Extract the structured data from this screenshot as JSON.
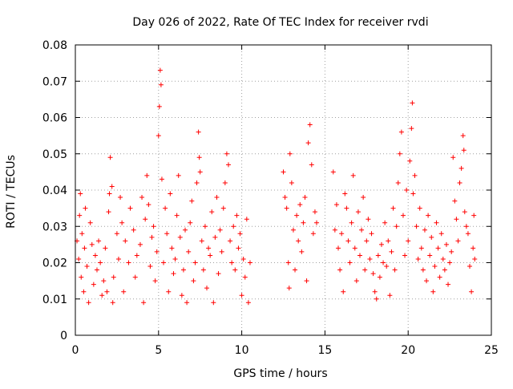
{
  "chart_data": {
    "type": "scatter",
    "title": "Day 026 of 2022, Rate Of TEC Index for receiver rvdi",
    "xlabel": "GPS time / hours",
    "ylabel": "ROTI / TECUs",
    "xlim": [
      0,
      25
    ],
    "ylim": [
      0,
      0.08
    ],
    "x_ticks": [
      "0",
      "5",
      "10",
      "15",
      "20",
      "25"
    ],
    "y_ticks": [
      "0",
      "0.01",
      "0.02",
      "0.03",
      "0.04",
      "0.05",
      "0.06",
      "0.07",
      "0.08"
    ],
    "grid": true,
    "marker": "plus",
    "series": [
      {
        "color": "#ff0000",
        "points": [
          [
            0.1,
            0.026
          ],
          [
            0.2,
            0.021
          ],
          [
            0.25,
            0.033
          ],
          [
            0.3,
            0.039
          ],
          [
            0.35,
            0.016
          ],
          [
            0.4,
            0.028
          ],
          [
            0.5,
            0.012
          ],
          [
            0.55,
            0.024
          ],
          [
            0.6,
            0.035
          ],
          [
            0.7,
            0.019
          ],
          [
            0.8,
            0.009
          ],
          [
            0.9,
            0.031
          ],
          [
            1.0,
            0.025
          ],
          [
            1.1,
            0.014
          ],
          [
            1.2,
            0.022
          ],
          [
            1.3,
            0.018
          ],
          [
            1.4,
            0.026
          ],
          [
            1.5,
            0.02
          ],
          [
            1.6,
            0.011
          ],
          [
            1.7,
            0.015
          ],
          [
            1.8,
            0.024
          ],
          [
            1.9,
            0.012
          ],
          [
            2.0,
            0.034
          ],
          [
            2.05,
            0.039
          ],
          [
            2.1,
            0.049
          ],
          [
            2.2,
            0.041
          ],
          [
            2.25,
            0.009
          ],
          [
            2.3,
            0.016
          ],
          [
            2.5,
            0.028
          ],
          [
            2.6,
            0.021
          ],
          [
            2.7,
            0.038
          ],
          [
            2.8,
            0.031
          ],
          [
            2.9,
            0.012
          ],
          [
            3.0,
            0.026
          ],
          [
            3.2,
            0.02
          ],
          [
            3.3,
            0.035
          ],
          [
            3.5,
            0.029
          ],
          [
            3.6,
            0.016
          ],
          [
            3.7,
            0.022
          ],
          [
            3.9,
            0.025
          ],
          [
            4.0,
            0.038
          ],
          [
            4.1,
            0.009
          ],
          [
            4.2,
            0.032
          ],
          [
            4.3,
            0.044
          ],
          [
            4.4,
            0.036
          ],
          [
            4.5,
            0.019
          ],
          [
            4.6,
            0.027
          ],
          [
            4.7,
            0.03
          ],
          [
            4.8,
            0.015
          ],
          [
            4.9,
            0.023
          ],
          [
            5.0,
            0.055
          ],
          [
            5.05,
            0.063
          ],
          [
            5.1,
            0.073
          ],
          [
            5.15,
            0.069
          ],
          [
            5.2,
            0.043
          ],
          [
            5.3,
            0.02
          ],
          [
            5.4,
            0.035
          ],
          [
            5.5,
            0.028
          ],
          [
            5.6,
            0.012
          ],
          [
            5.7,
            0.039
          ],
          [
            5.8,
            0.024
          ],
          [
            5.9,
            0.017
          ],
          [
            6.0,
            0.021
          ],
          [
            6.1,
            0.033
          ],
          [
            6.2,
            0.044
          ],
          [
            6.3,
            0.027
          ],
          [
            6.4,
            0.011
          ],
          [
            6.5,
            0.018
          ],
          [
            6.6,
            0.029
          ],
          [
            6.7,
            0.009
          ],
          [
            6.8,
            0.023
          ],
          [
            6.9,
            0.031
          ],
          [
            7.0,
            0.037
          ],
          [
            7.1,
            0.015
          ],
          [
            7.2,
            0.02
          ],
          [
            7.3,
            0.042
          ],
          [
            7.4,
            0.056
          ],
          [
            7.45,
            0.049
          ],
          [
            7.5,
            0.045
          ],
          [
            7.6,
            0.026
          ],
          [
            7.7,
            0.018
          ],
          [
            7.8,
            0.03
          ],
          [
            7.9,
            0.013
          ],
          [
            8.0,
            0.024
          ],
          [
            8.1,
            0.022
          ],
          [
            8.2,
            0.034
          ],
          [
            8.3,
            0.009
          ],
          [
            8.4,
            0.027
          ],
          [
            8.5,
            0.038
          ],
          [
            8.6,
            0.017
          ],
          [
            8.7,
            0.029
          ],
          [
            8.8,
            0.023
          ],
          [
            8.9,
            0.035
          ],
          [
            9.0,
            0.042
          ],
          [
            9.1,
            0.05
          ],
          [
            9.2,
            0.047
          ],
          [
            9.3,
            0.026
          ],
          [
            9.4,
            0.02
          ],
          [
            9.5,
            0.03
          ],
          [
            9.6,
            0.018
          ],
          [
            9.7,
            0.033
          ],
          [
            9.8,
            0.024
          ],
          [
            9.9,
            0.028
          ],
          [
            10.0,
            0.011
          ],
          [
            10.1,
            0.021
          ],
          [
            10.2,
            0.016
          ],
          [
            10.3,
            0.032
          ],
          [
            10.4,
            0.009
          ],
          [
            10.5,
            0.02
          ],
          [
            12.5,
            0.045
          ],
          [
            12.6,
            0.038
          ],
          [
            12.7,
            0.035
          ],
          [
            12.8,
            0.02
          ],
          [
            12.85,
            0.013
          ],
          [
            12.9,
            0.05
          ],
          [
            13.0,
            0.042
          ],
          [
            13.1,
            0.029
          ],
          [
            13.2,
            0.018
          ],
          [
            13.3,
            0.033
          ],
          [
            13.4,
            0.026
          ],
          [
            13.5,
            0.036
          ],
          [
            13.6,
            0.023
          ],
          [
            13.7,
            0.031
          ],
          [
            13.8,
            0.038
          ],
          [
            13.9,
            0.015
          ],
          [
            14.0,
            0.053
          ],
          [
            14.1,
            0.058
          ],
          [
            14.2,
            0.047
          ],
          [
            14.3,
            0.028
          ],
          [
            14.4,
            0.034
          ],
          [
            14.5,
            0.031
          ],
          [
            15.5,
            0.045
          ],
          [
            15.6,
            0.029
          ],
          [
            15.7,
            0.036
          ],
          [
            15.8,
            0.024
          ],
          [
            15.9,
            0.018
          ],
          [
            16.0,
            0.028
          ],
          [
            16.1,
            0.012
          ],
          [
            16.2,
            0.039
          ],
          [
            16.3,
            0.035
          ],
          [
            16.4,
            0.026
          ],
          [
            16.5,
            0.02
          ],
          [
            16.6,
            0.031
          ],
          [
            16.7,
            0.044
          ],
          [
            16.8,
            0.024
          ],
          [
            16.9,
            0.015
          ],
          [
            17.0,
            0.034
          ],
          [
            17.1,
            0.022
          ],
          [
            17.2,
            0.029
          ],
          [
            17.3,
            0.038
          ],
          [
            17.4,
            0.018
          ],
          [
            17.5,
            0.026
          ],
          [
            17.6,
            0.032
          ],
          [
            17.7,
            0.021
          ],
          [
            17.8,
            0.028
          ],
          [
            17.9,
            0.017
          ],
          [
            18.0,
            0.012
          ],
          [
            18.1,
            0.01
          ],
          [
            18.2,
            0.022
          ],
          [
            18.3,
            0.016
          ],
          [
            18.4,
            0.025
          ],
          [
            18.5,
            0.02
          ],
          [
            18.6,
            0.031
          ],
          [
            18.7,
            0.019
          ],
          [
            18.8,
            0.026
          ],
          [
            18.9,
            0.011
          ],
          [
            19.0,
            0.023
          ],
          [
            19.1,
            0.035
          ],
          [
            19.2,
            0.018
          ],
          [
            19.3,
            0.03
          ],
          [
            19.4,
            0.042
          ],
          [
            19.5,
            0.05
          ],
          [
            19.6,
            0.056
          ],
          [
            19.7,
            0.033
          ],
          [
            19.8,
            0.022
          ],
          [
            19.9,
            0.04
          ],
          [
            20.0,
            0.026
          ],
          [
            20.1,
            0.048
          ],
          [
            20.2,
            0.057
          ],
          [
            20.25,
            0.064
          ],
          [
            20.3,
            0.039
          ],
          [
            20.4,
            0.044
          ],
          [
            20.5,
            0.03
          ],
          [
            20.6,
            0.021
          ],
          [
            20.7,
            0.035
          ],
          [
            20.8,
            0.024
          ],
          [
            20.9,
            0.018
          ],
          [
            21.0,
            0.029
          ],
          [
            21.1,
            0.015
          ],
          [
            21.2,
            0.033
          ],
          [
            21.3,
            0.022
          ],
          [
            21.4,
            0.027
          ],
          [
            21.5,
            0.012
          ],
          [
            21.6,
            0.019
          ],
          [
            21.7,
            0.031
          ],
          [
            21.8,
            0.024
          ],
          [
            21.9,
            0.016
          ],
          [
            22.0,
            0.028
          ],
          [
            22.1,
            0.021
          ],
          [
            22.2,
            0.018
          ],
          [
            22.3,
            0.025
          ],
          [
            22.4,
            0.014
          ],
          [
            22.5,
            0.02
          ],
          [
            22.6,
            0.023
          ],
          [
            22.7,
            0.049
          ],
          [
            22.8,
            0.037
          ],
          [
            22.9,
            0.032
          ],
          [
            23.0,
            0.026
          ],
          [
            23.1,
            0.042
          ],
          [
            23.2,
            0.046
          ],
          [
            23.3,
            0.055
          ],
          [
            23.35,
            0.051
          ],
          [
            23.4,
            0.034
          ],
          [
            23.5,
            0.03
          ],
          [
            23.6,
            0.028
          ],
          [
            23.7,
            0.019
          ],
          [
            23.8,
            0.012
          ],
          [
            23.9,
            0.024
          ],
          [
            24.0,
            0.021
          ],
          [
            23.95,
            0.033
          ]
        ]
      }
    ]
  }
}
